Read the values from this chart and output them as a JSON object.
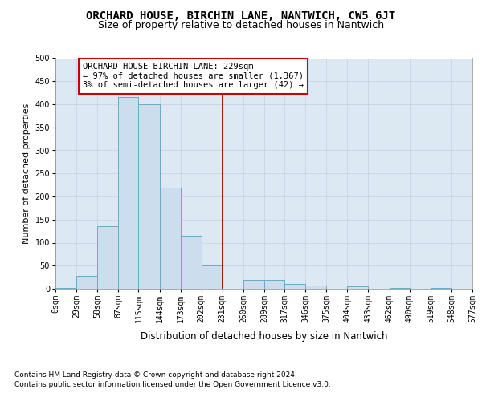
{
  "title": "ORCHARD HOUSE, BIRCHIN LANE, NANTWICH, CW5 6JT",
  "subtitle": "Size of property relative to detached houses in Nantwich",
  "xlabel": "Distribution of detached houses by size in Nantwich",
  "ylabel": "Number of detached properties",
  "bin_labels": [
    "0sqm",
    "29sqm",
    "58sqm",
    "87sqm",
    "115sqm",
    "144sqm",
    "173sqm",
    "202sqm",
    "231sqm",
    "260sqm",
    "289sqm",
    "317sqm",
    "346sqm",
    "375sqm",
    "404sqm",
    "433sqm",
    "462sqm",
    "490sqm",
    "519sqm",
    "548sqm",
    "577sqm"
  ],
  "bar_values": [
    2,
    27,
    135,
    415,
    400,
    220,
    115,
    50,
    0,
    20,
    20,
    10,
    7,
    0,
    5,
    0,
    2,
    0,
    2,
    0
  ],
  "bin_edges": [
    0,
    29,
    58,
    87,
    115,
    144,
    173,
    202,
    231,
    260,
    289,
    317,
    346,
    375,
    404,
    433,
    462,
    490,
    519,
    548,
    577
  ],
  "bar_color": "#ccdded",
  "bar_edge_color": "#6aaac8",
  "reference_line_x": 231,
  "reference_line_color": "#aa0000",
  "annotation_text": "ORCHARD HOUSE BIRCHIN LANE: 229sqm\n← 97% of detached houses are smaller (1,367)\n3% of semi-detached houses are larger (42) →",
  "annotation_box_color": "#ffffff",
  "annotation_box_edge_color": "#cc0000",
  "ylim": [
    0,
    500
  ],
  "yticks": [
    0,
    50,
    100,
    150,
    200,
    250,
    300,
    350,
    400,
    450,
    500
  ],
  "grid_color": "#c8d4e4",
  "background_color": "#dce8f2",
  "footer_line1": "Contains HM Land Registry data © Crown copyright and database right 2024.",
  "footer_line2": "Contains public sector information licensed under the Open Government Licence v3.0.",
  "title_fontsize": 10,
  "subtitle_fontsize": 9,
  "ylabel_fontsize": 8,
  "xlabel_fontsize": 8.5,
  "tick_fontsize": 7,
  "annotation_fontsize": 7.5,
  "footer_fontsize": 6.5
}
